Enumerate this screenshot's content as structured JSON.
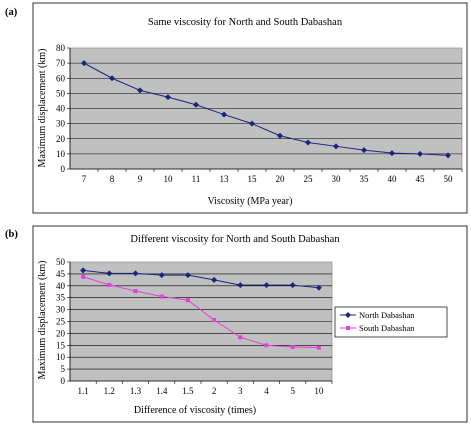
{
  "chart_data": [
    {
      "type": "line",
      "panel_label": "(a)",
      "title": "Same viscosity for North and South Dabashan",
      "xlabel": "Viscosity (MPa year)",
      "ylabel": "Maximum displacement (km)",
      "categories": [
        "7",
        "8",
        "9",
        "10",
        "11",
        "13",
        "15",
        "20",
        "25",
        "30",
        "35",
        "40",
        "45",
        "50"
      ],
      "ylim": [
        0,
        80
      ],
      "yticks": [
        0,
        10,
        20,
        30,
        40,
        50,
        60,
        70,
        80
      ],
      "grid": true,
      "series": [
        {
          "values": [
            70,
            60,
            52,
            47.5,
            42.5,
            36,
            30,
            22,
            17.5,
            15,
            12.5,
            10.5,
            10,
            9
          ],
          "color": "#1a237e",
          "marker": "diamond"
        }
      ]
    },
    {
      "type": "line",
      "panel_label": "(b)",
      "title": "Different viscosity for North and South Dabashan",
      "xlabel": "Difference of viscosity (times)",
      "ylabel": "Maximum displacement (km)",
      "categories": [
        "1.1",
        "1.2",
        "1.3",
        "1.4",
        "1.5",
        "2",
        "3",
        "4",
        "5",
        "10"
      ],
      "ylim": [
        0,
        50
      ],
      "yticks": [
        0,
        5,
        10,
        15,
        20,
        25,
        30,
        35,
        40,
        45,
        50
      ],
      "grid": true,
      "legend": "right",
      "series": [
        {
          "name": "North Dabashan",
          "values": [
            46.5,
            45.2,
            45.2,
            44.5,
            44.5,
            42.5,
            40.3,
            40.3,
            40.3,
            39.2
          ],
          "color": "#1a237e",
          "marker": "diamond"
        },
        {
          "name": "South Dabashan",
          "values": [
            43.8,
            40.4,
            37.8,
            35.5,
            34,
            25.6,
            18.4,
            15,
            14.3,
            14
          ],
          "color": "#e040e0",
          "marker": "square"
        }
      ]
    }
  ]
}
